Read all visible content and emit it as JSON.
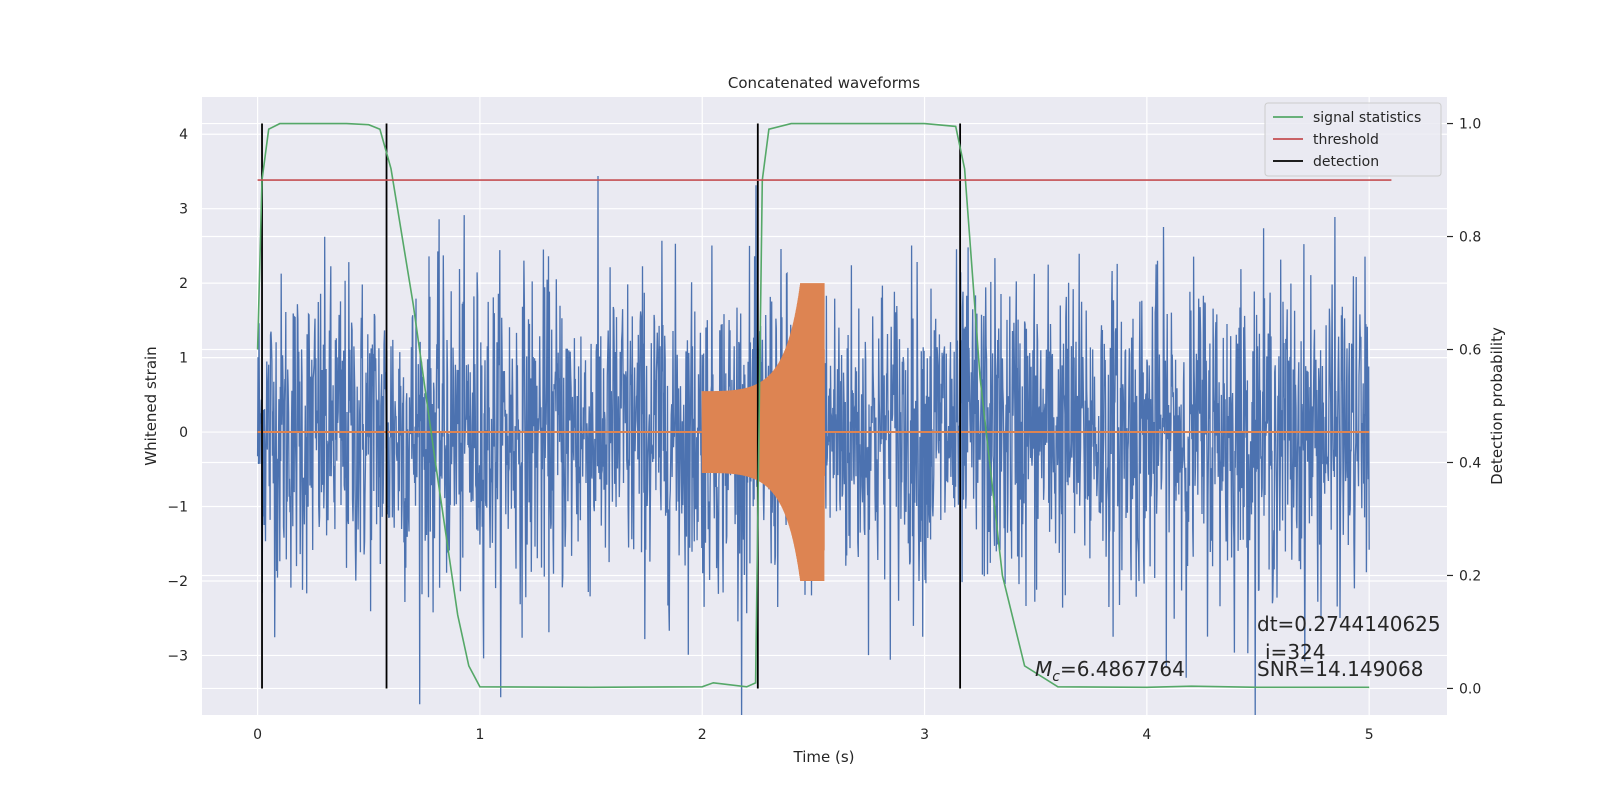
{
  "chart_data": {
    "type": "line",
    "title": "Concatenated waveforms",
    "xlabel": "Time (s)",
    "ylabel": "Whitened strain",
    "y2label": "Detection probability",
    "xlim": [
      -0.25,
      5.35
    ],
    "ylim": [
      -3.8,
      4.5
    ],
    "y2lim": [
      -0.047,
      1.047
    ],
    "xticks": [
      "0",
      "1",
      "2",
      "3",
      "4",
      "5"
    ],
    "xtick_values": [
      0,
      1,
      2,
      3,
      4,
      5
    ],
    "yticks": [
      "−3",
      "−2",
      "−1",
      "0",
      "1",
      "2",
      "3",
      "4"
    ],
    "ytick_values": [
      -3,
      -2,
      -1,
      0,
      1,
      2,
      3,
      4
    ],
    "y2ticks": [
      "0.0",
      "0.2",
      "0.4",
      "0.6",
      "0.8",
      "1.0"
    ],
    "y2tick_values": [
      0.0,
      0.2,
      0.4,
      0.6,
      0.8,
      1.0
    ],
    "grid": true,
    "legend": {
      "position": "top-right",
      "entries": [
        {
          "label": "signal statistics",
          "color": "#55a868"
        },
        {
          "label": "threshold",
          "color": "#c44e52"
        },
        {
          "label": "detection",
          "color": "#000000"
        }
      ]
    },
    "series": {
      "strain_noise": {
        "color": "#4c72b0",
        "x_range": [
          0,
          5
        ],
        "approx_amplitude": 2.6,
        "axis": "left"
      },
      "chirp_template": {
        "color": "#dd8452",
        "x_range": [
          2.0,
          2.55
        ],
        "peak_amplitude": 2.0,
        "axis": "left"
      },
      "signal_statistics": {
        "color": "#55a868",
        "axis": "right",
        "x": [
          0.0,
          0.02,
          0.05,
          0.1,
          0.2,
          0.4,
          0.5,
          0.55,
          0.6,
          0.7,
          0.8,
          0.9,
          0.95,
          1.0,
          1.5,
          2.0,
          2.05,
          2.2,
          2.24,
          2.27,
          2.3,
          2.4,
          3.0,
          3.14,
          3.18,
          3.25,
          3.35,
          3.45,
          3.6,
          4.0,
          4.2,
          4.5,
          5.0
        ],
        "y": [
          0.6,
          0.9,
          0.99,
          1.0,
          1.0,
          1.0,
          0.998,
          0.99,
          0.92,
          0.68,
          0.4,
          0.13,
          0.04,
          0.003,
          0.002,
          0.003,
          0.01,
          0.003,
          0.01,
          0.9,
          0.99,
          1.0,
          1.0,
          0.995,
          0.92,
          0.55,
          0.2,
          0.04,
          0.003,
          0.002,
          0.004,
          0.002,
          0.002
        ]
      },
      "threshold": {
        "color": "#c44e52",
        "axis": "right",
        "x": [
          0.0,
          5.1
        ],
        "y": [
          0.9,
          0.9
        ]
      },
      "detections": {
        "color": "#000000",
        "x": [
          0.02,
          0.58,
          2.25,
          3.16
        ]
      }
    },
    "annotations": [
      {
        "text": "dt=0.2744140625"
      },
      {
        "text": "i=324"
      },
      {
        "text_prefix": "M",
        "text_sub": "c",
        "text_suffix": "=6.4867764"
      },
      {
        "text": "SNR=14.149068"
      }
    ]
  }
}
